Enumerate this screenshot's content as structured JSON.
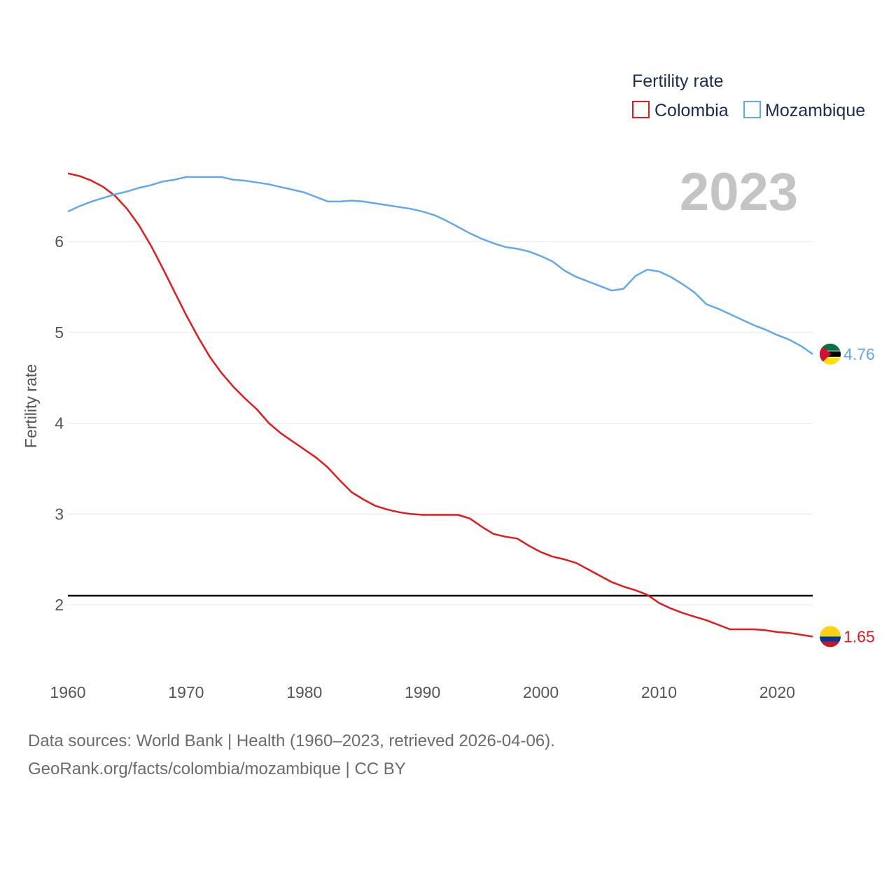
{
  "chart_data": {
    "type": "line",
    "title": "",
    "year_label": "2023",
    "xlabel": "",
    "ylabel": "Fertility rate",
    "xlim": [
      1960,
      2023
    ],
    "ylim": [
      1.4,
      7.0
    ],
    "x_ticks": [
      1960,
      1970,
      1980,
      1990,
      2000,
      2010,
      2020
    ],
    "y_ticks": [
      2,
      3,
      4,
      5,
      6
    ],
    "grid": true,
    "reference_line": {
      "y": 2.1,
      "color": "#000000"
    },
    "legend": {
      "title": "Fertility rate",
      "placement": "top-right"
    },
    "x": [
      1960,
      1961,
      1962,
      1963,
      1964,
      1965,
      1966,
      1967,
      1968,
      1969,
      1970,
      1971,
      1972,
      1973,
      1974,
      1975,
      1976,
      1977,
      1978,
      1979,
      1980,
      1981,
      1982,
      1983,
      1984,
      1985,
      1986,
      1987,
      1988,
      1989,
      1990,
      1991,
      1992,
      1993,
      1994,
      1995,
      1996,
      1997,
      1998,
      1999,
      2000,
      2001,
      2002,
      2003,
      2004,
      2005,
      2006,
      2007,
      2008,
      2009,
      2010,
      2011,
      2012,
      2013,
      2014,
      2015,
      2016,
      2017,
      2018,
      2019,
      2020,
      2021,
      2022,
      2023
    ],
    "series": [
      {
        "name": "Colombia",
        "color": "#e41a1c",
        "end_label": "1.65",
        "values": [
          6.75,
          6.72,
          6.67,
          6.6,
          6.5,
          6.36,
          6.18,
          5.96,
          5.71,
          5.45,
          5.19,
          4.95,
          4.73,
          4.55,
          4.4,
          4.27,
          4.15,
          4.0,
          3.89,
          3.8,
          3.71,
          3.62,
          3.51,
          3.37,
          3.24,
          3.16,
          3.09,
          3.05,
          3.02,
          3.0,
          2.99,
          2.99,
          2.99,
          2.99,
          2.95,
          2.86,
          2.78,
          2.75,
          2.73,
          2.65,
          2.58,
          2.53,
          2.5,
          2.46,
          2.39,
          2.32,
          2.25,
          2.2,
          2.16,
          2.11,
          2.02,
          1.96,
          1.91,
          1.87,
          1.83,
          1.78,
          1.73,
          1.73,
          1.73,
          1.72,
          1.7,
          1.69,
          1.67,
          1.65
        ]
      },
      {
        "name": "Mozambique",
        "color": "#64a8e8",
        "end_label": "4.76",
        "values": [
          6.33,
          6.39,
          6.44,
          6.48,
          6.52,
          6.55,
          6.59,
          6.62,
          6.66,
          6.68,
          6.71,
          6.71,
          6.71,
          6.71,
          6.68,
          6.67,
          6.65,
          6.63,
          6.6,
          6.57,
          6.54,
          6.49,
          6.44,
          6.44,
          6.45,
          6.44,
          6.42,
          6.4,
          6.38,
          6.36,
          6.33,
          6.29,
          6.23,
          6.16,
          6.09,
          6.03,
          5.98,
          5.94,
          5.92,
          5.89,
          5.84,
          5.78,
          5.68,
          5.61,
          5.56,
          5.51,
          5.46,
          5.48,
          5.62,
          5.69,
          5.67,
          5.61,
          5.53,
          5.44,
          5.31,
          5.26,
          5.2,
          5.14,
          5.08,
          5.03,
          4.97,
          4.92,
          4.85,
          4.76
        ]
      }
    ]
  },
  "footer": {
    "line1": "Data sources: World Bank | Health (1960–2023, retrieved 2026-04-06).",
    "line2": "GeoRank.org/facts/colombia/mozambique | CC BY"
  },
  "flags": {
    "colombia": [
      "#fcd116",
      "#003893",
      "#ce1126"
    ],
    "mozambique": [
      "#00743f",
      "#000000",
      "#fce100",
      "#d21034",
      "#ffffff"
    ]
  }
}
